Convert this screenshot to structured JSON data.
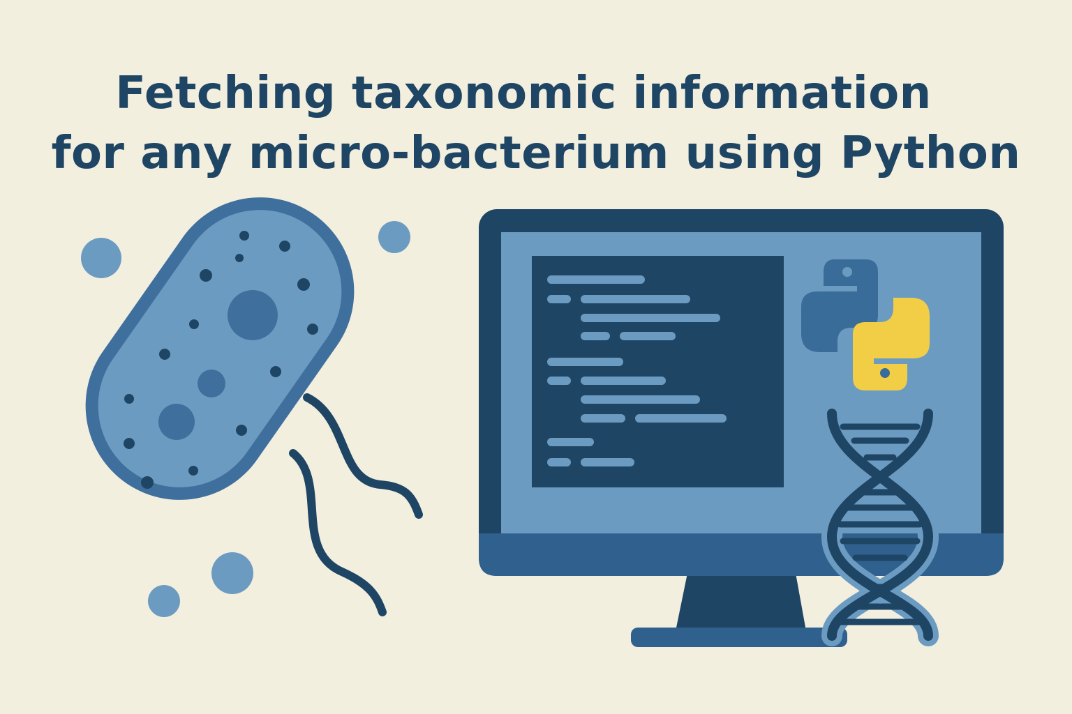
{
  "title": {
    "line1": "Fetching taxonomic information",
    "line2": "for any micro-bacterium using Python"
  },
  "icons": {
    "bacterium": "bacterium-icon",
    "computer": "monitor-icon",
    "python": "python-logo-icon",
    "dna": "dna-helix-icon"
  },
  "colors": {
    "background": "#f3efdf",
    "navy": "#1f4565",
    "steel_blue": "#30618e",
    "light_blue": "#6c9bc2",
    "python_blue": "#3a6c9a",
    "python_yellow": "#f2ce46"
  }
}
